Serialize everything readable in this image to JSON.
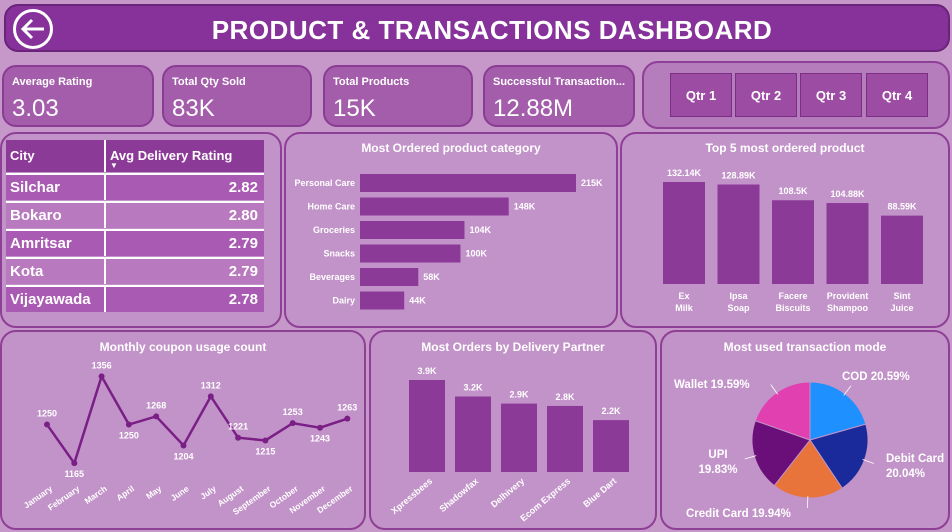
{
  "header": {
    "title": "PRODUCT & TRANSACTIONS DASHBOARD",
    "back_icon": "arrow-left-icon"
  },
  "kpis": [
    {
      "label": "Average Rating",
      "value": "3.03"
    },
    {
      "label": "Total Qty Sold",
      "value": "83K"
    },
    {
      "label": "Total Products",
      "value": "15K"
    },
    {
      "label": "Successful Transaction...",
      "value": "12.88M"
    }
  ],
  "quarters": [
    "Qtr 1",
    "Qtr 2",
    "Qtr 3",
    "Qtr 4"
  ],
  "city_table": {
    "col_city": "City",
    "col_rating": "Avg Delivery Rating",
    "rows": [
      {
        "city": "Silchar",
        "rating": "2.82"
      },
      {
        "city": "Bokaro",
        "rating": "2.80"
      },
      {
        "city": "Amritsar",
        "rating": "2.79"
      },
      {
        "city": "Kota",
        "rating": "2.79"
      },
      {
        "city": "Vijayawada",
        "rating": "2.78"
      }
    ]
  },
  "chart_data": [
    {
      "type": "bar",
      "orientation": "horizontal",
      "title": "Most Ordered product category",
      "categories": [
        "Personal Care",
        "Home Care",
        "Groceries",
        "Snacks",
        "Beverages",
        "Dairy"
      ],
      "values": [
        215,
        148,
        104,
        100,
        58,
        44
      ],
      "labels": [
        "215K",
        "148K",
        "104K",
        "100K",
        "58K",
        "44K"
      ],
      "color": "#8c3a98"
    },
    {
      "type": "bar",
      "title": "Top 5 most ordered product",
      "categories": [
        "Ex Milk",
        "Ipsa Soap",
        "Facere Biscuits",
        "Provident Shampoo",
        "Sint Juice"
      ],
      "values": [
        132.14,
        128.89,
        108.5,
        104.88,
        88.59
      ],
      "labels": [
        "132.14K",
        "128.89K",
        "108.5K",
        "104.88K",
        "88.59K"
      ],
      "color": "#8c3a98"
    },
    {
      "type": "line",
      "title": "Monthly coupon usage count",
      "categories": [
        "January",
        "February",
        "March",
        "April",
        "May",
        "June",
        "July",
        "August",
        "September",
        "October",
        "November",
        "December"
      ],
      "values": [
        1250,
        1165,
        1356,
        1250,
        1268,
        1204,
        1312,
        1221,
        1215,
        1253,
        1243,
        1263
      ],
      "color": "#7a1f86"
    },
    {
      "type": "bar",
      "title": "Most Orders by Delivery Partner",
      "categories": [
        "Xpressbees",
        "Shadowfax",
        "Delhivery",
        "Ecom Express",
        "Blue Dart"
      ],
      "values": [
        3.9,
        3.2,
        2.9,
        2.8,
        2.2
      ],
      "labels": [
        "3.9K",
        "3.2K",
        "2.9K",
        "2.8K",
        "2.2K"
      ],
      "color": "#8c3a98"
    },
    {
      "type": "pie",
      "title": "Most used transaction mode",
      "slices": [
        {
          "name": "COD",
          "value": 20.59,
          "label": "COD 20.59%",
          "color": "#1e90ff"
        },
        {
          "name": "Debit Card",
          "value": 20.04,
          "label": "Debit Card 20.04%",
          "color": "#1b2a9a"
        },
        {
          "name": "Credit Card",
          "value": 19.94,
          "label": "Credit Card 19.94%",
          "color": "#e8743b"
        },
        {
          "name": "UPI",
          "value": 19.83,
          "label": "UPI 19.83%",
          "color": "#6a0f7a"
        },
        {
          "name": "Wallet",
          "value": 19.59,
          "label": "Wallet 19.59%",
          "color": "#e040b0"
        }
      ]
    }
  ]
}
